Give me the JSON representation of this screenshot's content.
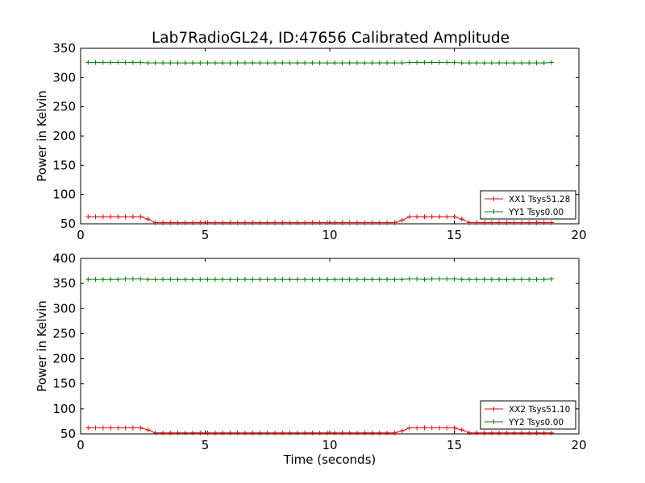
{
  "figure": {
    "title": "Lab7RadioGL24, ID:47656 Calibrated Amplitude"
  },
  "chart_data": [
    {
      "type": "line",
      "title": "Lab7RadioGL24, ID:47656 Calibrated Amplitude",
      "xlabel": "",
      "ylabel": "Power in Kelvin",
      "xlim": [
        0,
        20
      ],
      "ylim": [
        50,
        350
      ],
      "xticks": [
        "0",
        "5",
        "10",
        "15",
        "20"
      ],
      "yticks": [
        "50",
        "100",
        "150",
        "200",
        "250",
        "300",
        "350"
      ],
      "legend_position": "bottom-right",
      "grid": false,
      "x": [
        0.3,
        0.6,
        0.9,
        1.2,
        1.5,
        1.8,
        2.1,
        2.4,
        2.7,
        3.0,
        3.3,
        3.6,
        3.9,
        4.2,
        4.5,
        4.8,
        5.1,
        5.4,
        5.7,
        6.0,
        6.3,
        6.6,
        6.9,
        7.2,
        7.5,
        7.8,
        8.1,
        8.4,
        8.7,
        9.0,
        9.3,
        9.6,
        9.9,
        10.2,
        10.5,
        10.8,
        11.1,
        11.4,
        11.7,
        12.0,
        12.3,
        12.6,
        12.9,
        13.2,
        13.5,
        13.8,
        14.1,
        14.4,
        14.7,
        15.0,
        15.3,
        15.6,
        15.9,
        16.2,
        16.5,
        16.8,
        17.1,
        17.4,
        17.7,
        18.0,
        18.3,
        18.6,
        18.9
      ],
      "series": [
        {
          "name": "XX1 Tsys51.28",
          "color": "#ff0000",
          "values": [
            62,
            62,
            62,
            62,
            62,
            62,
            62,
            62,
            58,
            52,
            52,
            52,
            52,
            52,
            52,
            52,
            52,
            52,
            52,
            52,
            52,
            52,
            52,
            52,
            52,
            52,
            52,
            52,
            52,
            52,
            52,
            52,
            52,
            52,
            52,
            52,
            52,
            52,
            52,
            52,
            52,
            52,
            56,
            62,
            62,
            62,
            62,
            62,
            62,
            62,
            58,
            52,
            52,
            52,
            52,
            52,
            52,
            52,
            52,
            52,
            52,
            52,
            52
          ]
        },
        {
          "name": "YY1 Tsys0.00",
          "color": "#008000",
          "values": [
            326,
            326,
            326,
            326,
            326,
            326,
            326,
            326,
            325,
            325,
            325,
            325,
            325,
            325,
            325,
            325,
            325,
            325,
            325,
            325,
            325,
            325,
            325,
            325,
            325,
            325,
            325,
            325,
            325,
            325,
            325,
            325,
            325,
            325,
            325,
            325,
            325,
            325,
            325,
            325,
            325,
            325,
            325,
            326,
            326,
            326,
            326,
            326,
            326,
            326,
            325,
            325,
            325,
            325,
            325,
            325,
            325,
            325,
            325,
            325,
            325,
            325,
            326
          ]
        }
      ]
    },
    {
      "type": "line",
      "title": "",
      "xlabel": "Time (seconds)",
      "ylabel": "Power in Kelvin",
      "xlim": [
        0,
        20
      ],
      "ylim": [
        50,
        400
      ],
      "xticks": [
        "0",
        "5",
        "10",
        "15",
        "20"
      ],
      "yticks": [
        "50",
        "100",
        "150",
        "200",
        "250",
        "300",
        "350",
        "400"
      ],
      "legend_position": "bottom-right",
      "grid": false,
      "x": [
        0.3,
        0.6,
        0.9,
        1.2,
        1.5,
        1.8,
        2.1,
        2.4,
        2.7,
        3.0,
        3.3,
        3.6,
        3.9,
        4.2,
        4.5,
        4.8,
        5.1,
        5.4,
        5.7,
        6.0,
        6.3,
        6.6,
        6.9,
        7.2,
        7.5,
        7.8,
        8.1,
        8.4,
        8.7,
        9.0,
        9.3,
        9.6,
        9.9,
        10.2,
        10.5,
        10.8,
        11.1,
        11.4,
        11.7,
        12.0,
        12.3,
        12.6,
        12.9,
        13.2,
        13.5,
        13.8,
        14.1,
        14.4,
        14.7,
        15.0,
        15.3,
        15.6,
        15.9,
        16.2,
        16.5,
        16.8,
        17.1,
        17.4,
        17.7,
        18.0,
        18.3,
        18.6,
        18.9
      ],
      "series": [
        {
          "name": "XX2 Tsys51.10",
          "color": "#ff0000",
          "values": [
            62,
            62,
            62,
            62,
            62,
            62,
            62,
            62,
            58,
            52,
            52,
            52,
            52,
            52,
            52,
            52,
            52,
            52,
            52,
            52,
            52,
            52,
            52,
            52,
            52,
            52,
            52,
            52,
            52,
            52,
            52,
            52,
            52,
            52,
            52,
            52,
            52,
            52,
            52,
            52,
            52,
            52,
            56,
            62,
            62,
            62,
            62,
            62,
            62,
            62,
            58,
            52,
            52,
            52,
            52,
            52,
            52,
            52,
            52,
            52,
            52,
            52,
            52
          ]
        },
        {
          "name": "YY2 Tsys0.00",
          "color": "#008000",
          "values": [
            358,
            358,
            358,
            358,
            358,
            359,
            359,
            359,
            358,
            358,
            358,
            358,
            358,
            358,
            358,
            358,
            358,
            358,
            358,
            358,
            358,
            358,
            358,
            358,
            358,
            358,
            358,
            358,
            358,
            358,
            358,
            358,
            358,
            358,
            358,
            358,
            358,
            358,
            358,
            358,
            358,
            358,
            358,
            359,
            359,
            358,
            359,
            359,
            359,
            359,
            358,
            358,
            358,
            358,
            358,
            358,
            358,
            358,
            358,
            358,
            358,
            358,
            359
          ]
        }
      ]
    }
  ]
}
